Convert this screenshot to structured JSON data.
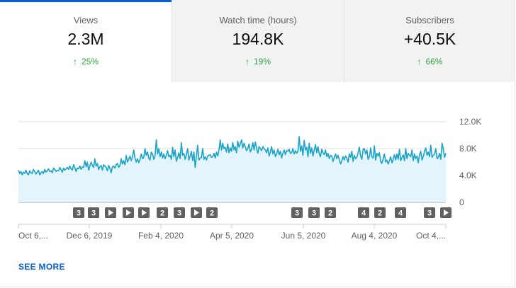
{
  "tabs": [
    {
      "label": "Views",
      "value": "2.3M",
      "delta": "25%",
      "selected": true
    },
    {
      "label": "Watch time (hours)",
      "value": "194.8K",
      "delta": "19%",
      "selected": false
    },
    {
      "label": "Subscribers",
      "value": "+40.5K",
      "delta": "66%",
      "selected": false
    }
  ],
  "colors": {
    "accent": "#065fd4",
    "line": "#1aa3c9",
    "area": "#e3f4fa",
    "positive": "#2ba640"
  },
  "icons": {
    "delta": "arrow-up-icon",
    "play": "play-icon"
  },
  "chart_data": {
    "type": "area",
    "y_ticks": [
      "12.0K",
      "8.0K",
      "4.0K",
      "0"
    ],
    "ylim": [
      0,
      12000
    ],
    "x_tick_labels": [
      "Oct 6,...",
      "Dec 6, 2019",
      "Feb 4, 2020",
      "Apr 5, 2020",
      "Jun 5, 2020",
      "Aug 4, 2020",
      "Oct 4,..."
    ],
    "start_date": "2019-10-06",
    "series": [
      {
        "values": [
          4800,
          4300,
          4600,
          4100,
          4500,
          4300,
          4800,
          4300,
          4100,
          4700,
          4400,
          4300,
          4900,
          4600,
          4200,
          4500,
          4800,
          4100,
          4400,
          4600,
          4300,
          4900,
          4500,
          4700,
          5000,
          4600,
          4700,
          4400,
          5100,
          4900,
          4600,
          4800,
          4700,
          5200,
          4900,
          4500,
          5100,
          4800,
          5000,
          5200,
          4900,
          5400,
          5000,
          4800,
          5600,
          5200,
          4600,
          5100,
          5000,
          5400,
          4900,
          5300,
          5200,
          6200,
          5300,
          6000,
          4800,
          5400,
          6000,
          5500,
          5200,
          6500,
          5400,
          5800,
          4900,
          5300,
          5500,
          4800,
          5600,
          5400,
          5200,
          4700,
          5500,
          5100,
          4400,
          5300,
          5400,
          5100,
          5600,
          5800,
          5200,
          5500,
          6500,
          5700,
          6200,
          5600,
          7000,
          6000,
          6400,
          6900,
          6200,
          6800,
          7800,
          6600,
          6000,
          6500,
          5900,
          6400,
          7200,
          6500,
          6700,
          8000,
          7000,
          7500,
          6600,
          6300,
          7500,
          7200,
          6400,
          6900,
          9300,
          7200,
          8000,
          6800,
          7500,
          6600,
          7200,
          6500,
          7000,
          7700,
          6800,
          7000,
          6400,
          8200,
          6800,
          7800,
          6100,
          6700,
          7400,
          6500,
          8900,
          7000,
          7300,
          6400,
          7100,
          8000,
          6300,
          6900,
          7600,
          6200,
          7500,
          5200,
          6800,
          8500,
          6300,
          6600,
          6700,
          8000,
          6400,
          6800,
          6300,
          6900,
          7000,
          7100,
          6700,
          6800,
          7300,
          6600,
          7500,
          6900,
          7800,
          9300,
          7800,
          8800,
          8000,
          8200,
          7500,
          8700,
          7400,
          8100,
          7600,
          8900,
          7800,
          8300,
          7400,
          9100,
          8200,
          8700,
          9300,
          8100,
          8800,
          8300,
          7700,
          8000,
          8700,
          7500,
          7900,
          8900,
          7800,
          9000,
          8100,
          7300,
          8300,
          8000,
          7700,
          8300,
          8000,
          7800,
          7400,
          8100,
          6900,
          7500,
          8300,
          7200,
          7800,
          6800,
          7200,
          7900,
          7100,
          7600,
          6600,
          7300,
          7800,
          7100,
          7700,
          7600,
          7900,
          7300,
          7400,
          8000,
          7200,
          7700,
          7300,
          7600,
          9800,
          7600,
          8400,
          7000,
          9200,
          7800,
          8200,
          6800,
          8800,
          7300,
          8100,
          6900,
          7800,
          8600,
          7400,
          8300,
          7200,
          6800,
          7900,
          7400,
          7100,
          7800,
          6800,
          7300,
          6500,
          7000,
          6900,
          6100,
          6700,
          7200,
          6500,
          7000,
          6400,
          5700,
          6200,
          6800,
          6300,
          6900,
          6600,
          6000,
          7200,
          6700,
          7600,
          6100,
          7000,
          6500,
          6700,
          7400,
          8200,
          6900,
          6400,
          7900,
          8000,
          7200,
          7800,
          6400,
          6800,
          8100,
          6800,
          6600,
          8400,
          6300,
          7300,
          6900,
          7400,
          6100,
          5800,
          6500,
          7200,
          6000,
          6300,
          5700,
          6200,
          6800,
          5900,
          6400,
          7100,
          6300,
          7200,
          6400,
          7900,
          6200,
          6700,
          7100,
          6200,
          8000,
          6500,
          7300,
          7000,
          6800,
          7800,
          6200,
          7200,
          6500,
          6900,
          5900,
          7100,
          7600,
          6300,
          6800,
          7600,
          8100,
          7000,
          7500,
          6800,
          8500,
          6700,
          7000,
          7200,
          8000,
          6500,
          6700,
          7300,
          6400,
          8800,
          7900,
          6700,
          7300
        ]
      }
    ],
    "markers": [
      {
        "label": "3",
        "kind": "number"
      },
      {
        "label": "3",
        "kind": "number"
      },
      {
        "label": "",
        "kind": "play"
      },
      {
        "label": "",
        "kind": "play"
      },
      {
        "label": "",
        "kind": "play"
      },
      {
        "label": "2",
        "kind": "number"
      },
      {
        "label": "3",
        "kind": "number"
      },
      {
        "label": "",
        "kind": "play"
      },
      {
        "label": "2",
        "kind": "number"
      },
      {
        "label": "3",
        "kind": "number"
      },
      {
        "label": "3",
        "kind": "number"
      },
      {
        "label": "2",
        "kind": "number"
      },
      {
        "label": "4",
        "kind": "number"
      },
      {
        "label": "2",
        "kind": "number"
      },
      {
        "label": "4",
        "kind": "number"
      },
      {
        "label": "3",
        "kind": "number"
      },
      {
        "label": "",
        "kind": "play"
      }
    ]
  },
  "footer": {
    "see_more": "SEE MORE"
  }
}
